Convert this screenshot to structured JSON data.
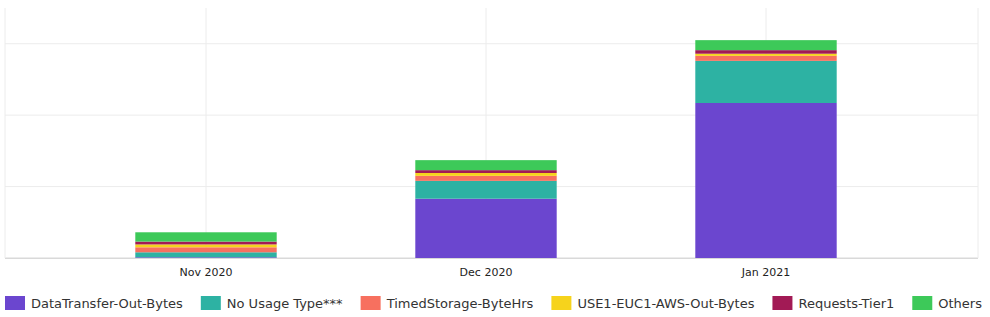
{
  "chart_data": {
    "type": "bar",
    "stacked": true,
    "grid": true,
    "legend": "bottom",
    "tick_labels": "x",
    "categories": [
      "Nov 2020",
      "Dec 2020",
      "Jan 2021"
    ],
    "ylim": [
      0,
      3.5
    ],
    "yticks": [
      0,
      1,
      2,
      3
    ],
    "series": [
      {
        "name": "DataTransfer-Out-Bytes",
        "color": "#6b46cf",
        "values": [
          0.01,
          0.83,
          2.17
        ]
      },
      {
        "name": "No Usage Type***",
        "color": "#2db2a3",
        "values": [
          0.07,
          0.25,
          0.59
        ]
      },
      {
        "name": "TimedStorage-ByteHrs",
        "color": "#f7705f",
        "values": [
          0.07,
          0.07,
          0.07
        ]
      },
      {
        "name": "USE1-EUC1-AWS-Out-Bytes",
        "color": "#f6d31c",
        "values": [
          0.04,
          0.04,
          0.03
        ]
      },
      {
        "name": "Requests-Tier1",
        "color": "#a21a55",
        "values": [
          0.04,
          0.04,
          0.05
        ]
      },
      {
        "name": "Others",
        "color": "#3dc959",
        "values": [
          0.13,
          0.14,
          0.14
        ]
      }
    ]
  }
}
